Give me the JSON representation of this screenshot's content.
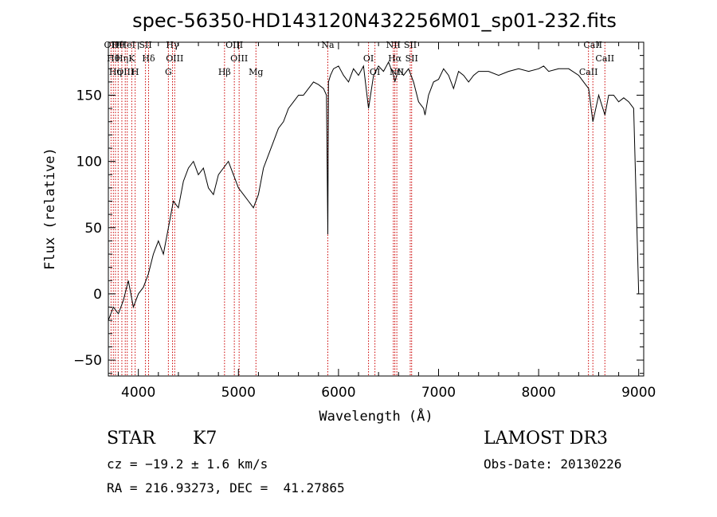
{
  "chart_data": {
    "type": "line",
    "title": "spec-56350-HD143120N432256M01_sp01-232.fits",
    "xlabel": "Wavelength (Å)",
    "ylabel": "Flux (relative)",
    "xlim": [
      3700,
      9050
    ],
    "ylim": [
      -62,
      190
    ],
    "x_ticks": [
      4000,
      5000,
      6000,
      7000,
      8000,
      9000
    ],
    "y_ticks": [
      -50,
      0,
      50,
      100,
      150
    ],
    "grid": false,
    "line_color": "#000000",
    "marker_color": "#cc0000",
    "series": [
      {
        "x": [
          3700,
          3750,
          3800,
          3850,
          3900,
          3950,
          4000,
          4050,
          4100,
          4150,
          4200,
          4250,
          4300,
          4350,
          4400,
          4450,
          4500,
          4550,
          4600,
          4650,
          4700,
          4750,
          4800,
          4850,
          4900,
          4950,
          5000,
          5050,
          5100,
          5150,
          5200,
          5250,
          5300,
          5350,
          5400,
          5450,
          5500,
          5550,
          5600,
          5650,
          5700,
          5750,
          5800,
          5850,
          5880,
          5893,
          5900,
          5920,
          5950,
          6000,
          6050,
          6100,
          6150,
          6200,
          6250,
          6300,
          6350,
          6400,
          6450,
          6500,
          6550,
          6563,
          6600,
          6650,
          6700,
          6750,
          6800,
          6850,
          6865,
          6900,
          6950,
          7000,
          7050,
          7100,
          7150,
          7200,
          7250,
          7300,
          7350,
          7400,
          7500,
          7600,
          7700,
          7800,
          7900,
          8000,
          8050,
          8100,
          8200,
          8300,
          8400,
          8450,
          8500,
          8542,
          8600,
          8662,
          8700,
          8750,
          8800,
          8850,
          8900,
          8950,
          9000
        ],
        "y": [
          -20,
          -10,
          -15,
          -5,
          10,
          -10,
          0,
          5,
          15,
          30,
          40,
          30,
          50,
          70,
          65,
          85,
          95,
          100,
          90,
          95,
          80,
          75,
          90,
          95,
          100,
          90,
          80,
          75,
          70,
          65,
          75,
          95,
          105,
          115,
          125,
          130,
          140,
          145,
          150,
          150,
          155,
          160,
          158,
          155,
          150,
          45,
          160,
          165,
          170,
          172,
          165,
          160,
          170,
          165,
          172,
          140,
          165,
          172,
          168,
          175,
          165,
          160,
          170,
          165,
          170,
          160,
          145,
          140,
          135,
          150,
          160,
          162,
          170,
          165,
          155,
          168,
          165,
          160,
          165,
          168,
          168,
          165,
          168,
          170,
          168,
          170,
          172,
          168,
          170,
          170,
          165,
          160,
          155,
          130,
          150,
          135,
          150,
          150,
          145,
          148,
          145,
          140,
          0
        ]
      }
    ],
    "line_markers": [
      {
        "x": 3727,
        "label": "OII"
      },
      {
        "x": 3750,
        "label": "Hθ"
      },
      {
        "x": 3771,
        "label": "Hη"
      },
      {
        "x": 3798,
        "label": "Hθ"
      },
      {
        "x": 3835,
        "label": "Hη"
      },
      {
        "x": 3869,
        "label": "OIII"
      },
      {
        "x": 3889,
        "label": "HeI"
      },
      {
        "x": 3934,
        "label": "K"
      },
      {
        "x": 3968,
        "label": "H"
      },
      {
        "x": 4071,
        "label": "SII"
      },
      {
        "x": 4102,
        "label": "Hδ"
      },
      {
        "x": 4300,
        "label": "G"
      },
      {
        "x": 4341,
        "label": "Hγ"
      },
      {
        "x": 4363,
        "label": "OIII"
      },
      {
        "x": 4861,
        "label": "Hβ"
      },
      {
        "x": 4959,
        "label": "OIII"
      },
      {
        "x": 5007,
        "label": "OIII"
      },
      {
        "x": 5175,
        "label": "Mg"
      },
      {
        "x": 5893,
        "label": "Na"
      },
      {
        "x": 6300,
        "label": "OI"
      },
      {
        "x": 6364,
        "label": "OI"
      },
      {
        "x": 6548,
        "label": "NII"
      },
      {
        "x": 6563,
        "label": "Hα"
      },
      {
        "x": 6583,
        "label": "NII"
      },
      {
        "x": 6717,
        "label": "SII"
      },
      {
        "x": 6731,
        "label": "SII"
      },
      {
        "x": 8498,
        "label": "CaII"
      },
      {
        "x": 8542,
        "label": "CaII"
      },
      {
        "x": 8662,
        "label": "CaII"
      }
    ]
  },
  "info": {
    "class_label": "STAR",
    "subclass": "K7",
    "survey": "LAMOST DR3",
    "redshift": "cz = −19.2 ± 1.6 km/s",
    "obs_date": "Obs-Date: 20130226",
    "coords": "RA = 216.93273, DEC =  41.27865"
  }
}
